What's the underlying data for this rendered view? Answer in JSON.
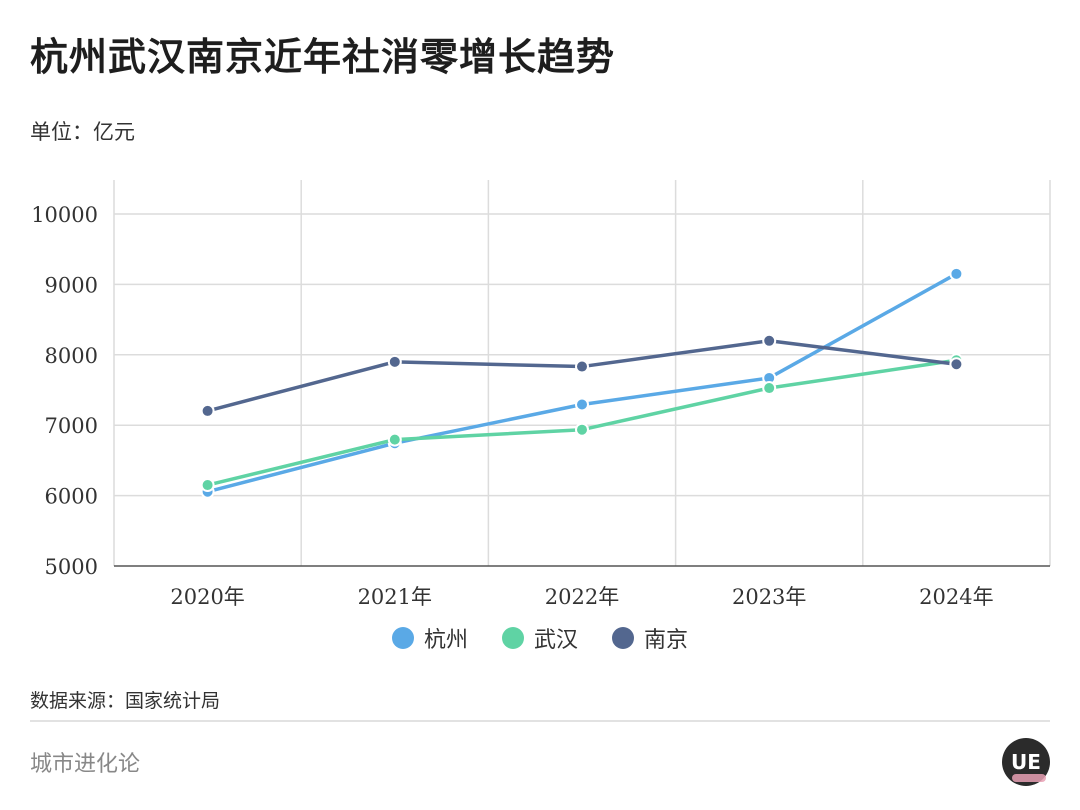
{
  "title": "杭州武汉南京近年社消零增长趋势",
  "unit": "单位：亿元",
  "source": "数据来源：国家统计局",
  "brand": "城市进化论",
  "logo_text": "UE",
  "chart_data": {
    "type": "line",
    "categories": [
      "2020年",
      "2021年",
      "2022年",
      "2023年",
      "2024年"
    ],
    "ylim": [
      5000,
      10000
    ],
    "yticks": [
      5000,
      6000,
      7000,
      8000,
      9000,
      10000
    ],
    "grid": true,
    "legend_position": "bottom-center",
    "series": [
      {
        "name": "杭州",
        "color": "#5aa9e6",
        "values": [
          6055,
          6744,
          7294,
          7671,
          9150
        ]
      },
      {
        "name": "武汉",
        "color": "#5fd3a4",
        "values": [
          6150,
          6795,
          6936,
          7528,
          7922
        ]
      },
      {
        "name": "南京",
        "color": "#53678f",
        "values": [
          7203,
          7900,
          7833,
          8199,
          7866
        ]
      }
    ]
  }
}
